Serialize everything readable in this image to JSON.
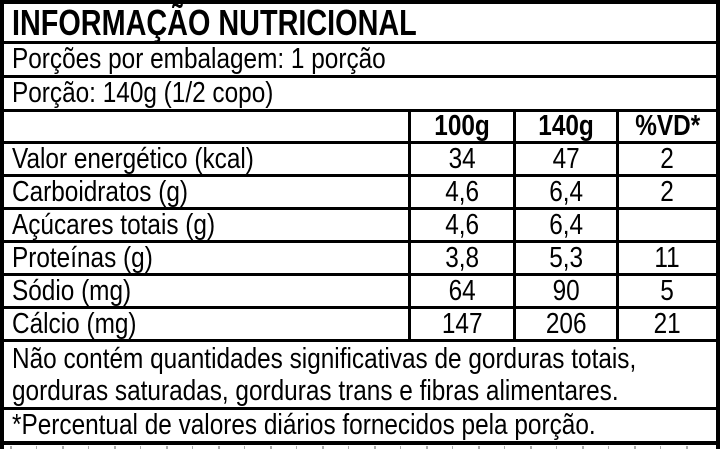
{
  "table": {
    "title": "INFORMAÇÃO NUTRICIONAL",
    "servings_line": "Porções por embalagem: 1 porção",
    "portion_line": "Porção: 140g (1/2 copo)",
    "columns": [
      "100g",
      "140g",
      "%VD*"
    ],
    "rows": [
      {
        "label": "Valor energético (kcal)",
        "values": [
          "34",
          "47",
          "2"
        ]
      },
      {
        "label": "Carboidratos (g)",
        "values": [
          "4,6",
          "6,4",
          "2"
        ]
      },
      {
        "label": "Açúcares totais (g)",
        "values": [
          "4,6",
          "6,4",
          ""
        ]
      },
      {
        "label": "Proteínas (g)",
        "values": [
          "3,8",
          "5,3",
          "11"
        ]
      },
      {
        "label": "Sódio (mg)",
        "values": [
          "64",
          "90",
          "5"
        ]
      },
      {
        "label": "Cálcio (mg)",
        "values": [
          "147",
          "206",
          "21"
        ]
      }
    ],
    "note_line1": "Não contém quantidades significativas de gorduras totais,",
    "note_line2": "gorduras saturadas, gorduras trans e fibras alimentares.",
    "footnote": "*Percentual de valores diários fornecidos pela porção."
  },
  "colors": {
    "border": "#000000",
    "background": "#ffffff",
    "text": "#000000"
  }
}
